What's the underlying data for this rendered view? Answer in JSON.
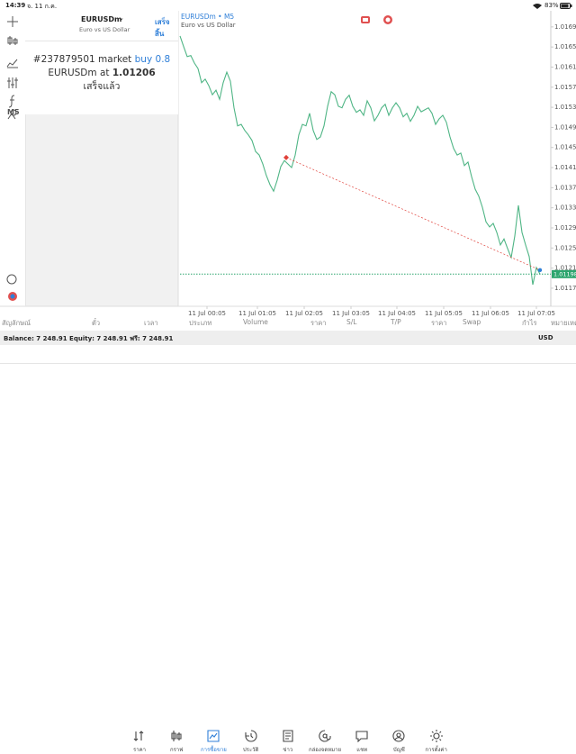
{
  "status_bar": {
    "time": "14:39",
    "date": "จ. 11 ก.ค.",
    "battery": "83%"
  },
  "toolbar": {
    "timeframe": "M5"
  },
  "order_panel": {
    "symbol": "EURUSDm",
    "description": "Euro vs US Dollar",
    "done_button": "เสร็จสิ้น",
    "line1": [
      "#237879501 market",
      "buy 0.8"
    ],
    "line2": [
      "EURUSDm at",
      "1.01206"
    ],
    "status": "เสร็จแล้ว"
  },
  "chart_data": {
    "type": "line",
    "title": "EURUSDm • M5",
    "subtitle": "Euro vs US Dollar",
    "series": [
      {
        "name": "EURUSDm",
        "color": "#4fb585",
        "values": [
          1.01672,
          1.01651,
          1.01631,
          1.01633,
          1.01618,
          1.01607,
          1.01579,
          1.01586,
          1.01573,
          1.01555,
          1.01564,
          1.01546,
          1.01579,
          1.016,
          1.01582,
          1.01529,
          1.01493,
          1.01496,
          1.01484,
          1.01475,
          1.01464,
          1.01442,
          1.01435,
          1.01417,
          1.01394,
          1.01376,
          1.01363,
          1.01385,
          1.01412,
          1.01424,
          1.01417,
          1.0141,
          1.01435,
          1.01475,
          1.01496,
          1.01493,
          1.01518,
          1.01484,
          1.01466,
          1.01471,
          1.01493,
          1.01532,
          1.01561,
          1.01555,
          1.01532,
          1.01529,
          1.01546,
          1.01554,
          1.01532,
          1.0152,
          1.01525,
          1.01514,
          1.01543,
          1.01529,
          1.01503,
          1.01514,
          1.01529,
          1.01536,
          1.01514,
          1.01529,
          1.01539,
          1.01529,
          1.01511,
          1.01518,
          1.01502,
          1.01514,
          1.01532,
          1.01521,
          1.01525,
          1.01529,
          1.01518,
          1.01496,
          1.01507,
          1.01514,
          1.015,
          1.01471,
          1.01448,
          1.01435,
          1.01439,
          1.01414,
          1.01421,
          1.01392,
          1.01367,
          1.01353,
          1.01331,
          1.01302,
          1.01292,
          1.01299,
          1.01281,
          1.01256,
          1.01268,
          1.01249,
          1.01231,
          1.01274,
          1.01335,
          1.01281,
          1.01256,
          1.01233,
          1.01177,
          1.01211,
          1.01198
        ]
      }
    ],
    "xlim": [
      0,
      103
    ],
    "xticks": [
      {
        "value": 7.5,
        "label": "11 Jul 00:05"
      },
      {
        "value": 21.5,
        "label": "11 Jul 01:05"
      },
      {
        "value": 34.5,
        "label": "11 Jul 02:05"
      },
      {
        "value": 47.5,
        "label": "11 Jul 03:05"
      },
      {
        "value": 60.25,
        "label": "11 Jul 04:05"
      },
      {
        "value": 73.25,
        "label": "11 Jul 05:05"
      },
      {
        "value": 86.25,
        "label": "11 Jul 06:05"
      },
      {
        "value": 99,
        "label": "11 Jul 07:05"
      }
    ],
    "ylim": [
      1.01134,
      1.01722
    ],
    "yticks": [
      {
        "value": 1.0169,
        "label": "1.01690"
      },
      {
        "value": 1.0165,
        "label": "1.01650"
      },
      {
        "value": 1.0161,
        "label": "1.01610"
      },
      {
        "value": 1.0157,
        "label": "1.01570"
      },
      {
        "value": 1.0153,
        "label": "1.01530"
      },
      {
        "value": 1.0149,
        "label": "1.01490"
      },
      {
        "value": 1.0145,
        "label": "1.01450"
      },
      {
        "value": 1.0141,
        "label": "1.01410"
      },
      {
        "value": 1.0137,
        "label": "1.01370"
      },
      {
        "value": 1.0133,
        "label": "1.01330"
      },
      {
        "value": 1.0129,
        "label": "1.01290"
      },
      {
        "value": 1.0125,
        "label": "1.01250"
      },
      {
        "value": 1.0121,
        "label": "1.01210"
      },
      {
        "value": 1.0117,
        "label": "1.01170"
      }
    ],
    "grid": false,
    "current_price": 1.01198,
    "price_line_color": "#2ca56e",
    "trade": {
      "from_index": 29.5,
      "from_price": 1.0143,
      "to_index": 100,
      "to_price": 1.01206,
      "color": "#e0413a",
      "end_color": "#2f7fd8"
    }
  },
  "positions_table": {
    "headers": [
      "สัญลักษณ์",
      "ตั๋ว",
      "เวลา",
      "ประเภท",
      "Volume",
      "ราคา",
      "S/L",
      "T/P",
      "ราคา",
      "Swap",
      "กำไร",
      "หมายเหตุ"
    ]
  },
  "balance_bar": {
    "text": "Balance: 7 248.91 Equity: 7 248.91 ฟรี: 7 248.91",
    "currency": "USD"
  },
  "nav": {
    "items": [
      "ราคา",
      "กราฟ",
      "การซื้อขาย",
      "ประวัติ",
      "ข่าว",
      "กล่องจดหมาย",
      "แชท",
      "บัญชี",
      "การตั้งค่า"
    ]
  }
}
